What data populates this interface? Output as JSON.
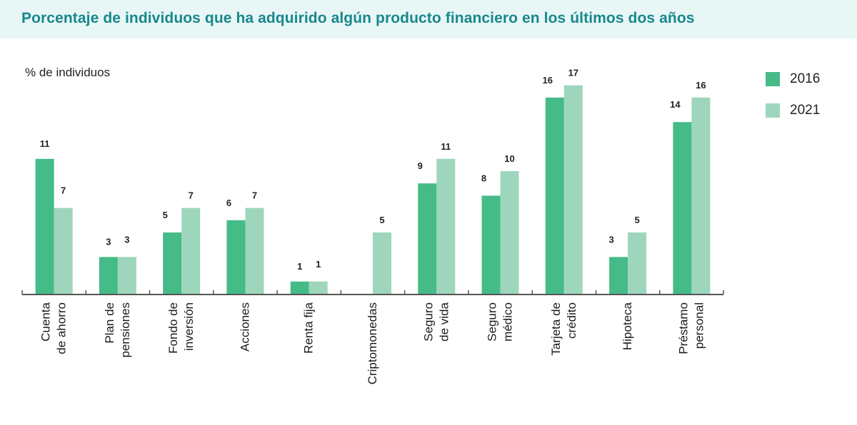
{
  "chart_data": {
    "type": "bar",
    "title": "Porcentaje de individuos que ha adquirido algún producto financiero en los últimos dos años",
    "ylabel": "% de individuos",
    "xlabel": "",
    "ylim": [
      0,
      18
    ],
    "grid": false,
    "legend_position": "top-right",
    "categories": [
      [
        "Cuenta",
        "de ahorro"
      ],
      [
        "Plan de",
        "pensiones"
      ],
      [
        "Fondo de",
        "inversión"
      ],
      [
        "Acciones"
      ],
      [
        "Renta fija"
      ],
      [
        "Criptomonedas"
      ],
      [
        "Seguro",
        "de vida"
      ],
      [
        "Seguro",
        "médico"
      ],
      [
        "Tarjeta de",
        "crédito"
      ],
      [
        "Hipoteca"
      ],
      [
        "Préstamo",
        "personal"
      ]
    ],
    "series": [
      {
        "name": "2016",
        "color": "#45bb87",
        "values": [
          11,
          3,
          5,
          6,
          1,
          null,
          9,
          8,
          16,
          3,
          14
        ]
      },
      {
        "name": "2021",
        "color": "#9dd6bc",
        "values": [
          7,
          3,
          7,
          7,
          1,
          5,
          11,
          10,
          17,
          5,
          16
        ]
      }
    ]
  },
  "colors": {
    "header_bg": "#e9f6f6",
    "title": "#17888c",
    "axis": "#555555"
  }
}
